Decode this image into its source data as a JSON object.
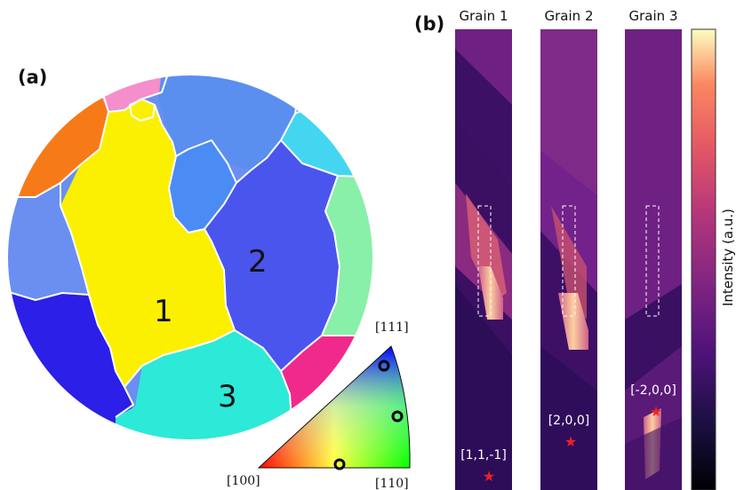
{
  "panel_a": {
    "label": "(a)",
    "grain_labels": [
      "1",
      "2",
      "3"
    ],
    "ipf": {
      "corner_100": "[100]",
      "corner_110": "[110]",
      "corner_111": "[111]"
    },
    "colors": {
      "grain1": "#fbf000",
      "grain2": "#4a55ee",
      "grain3": "#2de9d8",
      "orange": "#f77a18",
      "pink": "#f48fcb",
      "green_small": "#5fe86a",
      "light_blue": "#5a8ff0",
      "mid_blue": "#4a8cf4",
      "cyan": "#44d6f0",
      "mint": "#88f0a8",
      "steel_blue": "#6a8ff0",
      "deep_blue": "#2b1fe8",
      "magenta": "#f02a8c"
    }
  },
  "panel_b": {
    "label": "(b)",
    "columns": [
      {
        "title": "Grain 1",
        "hkl": "[1,1,-1]"
      },
      {
        "title": "Grain 2",
        "hkl": "[2,0,0]"
      },
      {
        "title": "Grain 3",
        "hkl": "[-2,0,0]"
      }
    ],
    "colorbar_label": "Intensity (a.u.)",
    "colormap": "magma",
    "star_color": "#ee2222"
  }
}
